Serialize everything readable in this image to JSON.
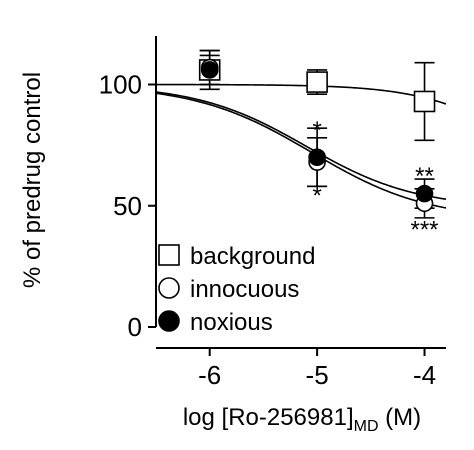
{
  "chart_data": {
    "type": "scatter",
    "ylabel": "% of predrug control",
    "xlabel_main": "log [Ro-256981]",
    "xlabel_sub": "MD",
    "xlabel_unit": " (M)",
    "x_ticks": [
      -6,
      -5,
      -4
    ],
    "x_tick_labels": [
      "-6",
      "-5",
      "-4"
    ],
    "y_ticks": [
      0,
      50,
      100
    ],
    "y_tick_labels": [
      "0",
      "50",
      "100"
    ],
    "xlim": [
      -6.5,
      -3.8
    ],
    "ylim": [
      0,
      120
    ],
    "legend_position": "bottom-left",
    "series": [
      {
        "name": "background",
        "marker": "square-open",
        "x": [
          -6,
          -5,
          -4
        ],
        "y": [
          106,
          101,
          93
        ],
        "err": [
          8,
          5,
          16
        ],
        "curve": {
          "top": 100,
          "bottom": 60,
          "logEC50": -3.2,
          "hill": 1
        }
      },
      {
        "name": "innocuous",
        "marker": "circle-open",
        "x": [
          -6,
          -5,
          -4
        ],
        "y": [
          107,
          68,
          51
        ],
        "err": [
          7,
          10,
          6
        ],
        "curve": {
          "top": 100,
          "bottom": 44,
          "logEC50": -5.05,
          "hill": 0.8
        }
      },
      {
        "name": "noxious",
        "marker": "circle-filled",
        "x": [
          -6,
          -5,
          -4
        ],
        "y": [
          106,
          70,
          55
        ],
        "err": [
          6,
          12,
          6
        ],
        "curve": {
          "top": 100,
          "bottom": 49,
          "logEC50": -5.1,
          "hill": 0.85
        }
      }
    ],
    "annotations": [
      {
        "x": -5,
        "y": 82,
        "text": "*"
      },
      {
        "x": -5,
        "y": 55,
        "text": "*"
      },
      {
        "x": -4,
        "y": 63,
        "text": "**"
      },
      {
        "x": -4,
        "y": 41,
        "text": "***"
      }
    ]
  }
}
